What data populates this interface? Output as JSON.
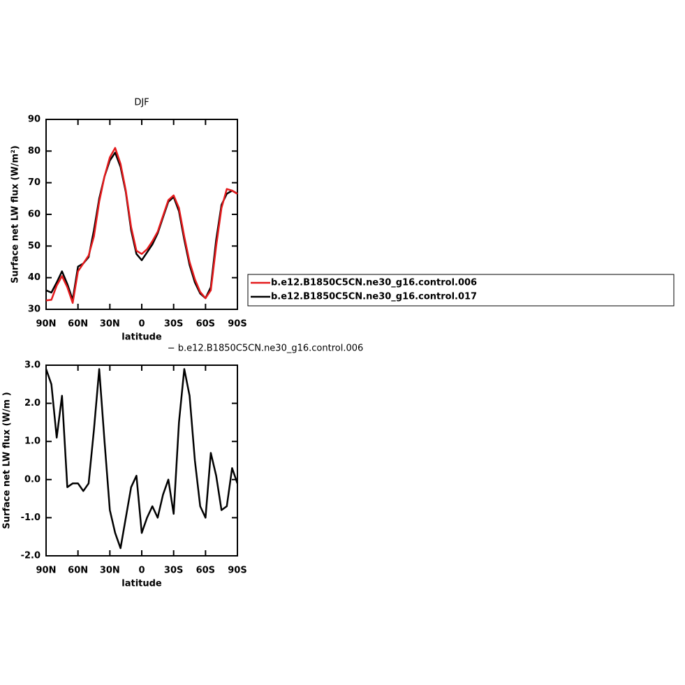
{
  "chart_data": [
    {
      "type": "line",
      "title": "DJF",
      "x_label": "latitude",
      "y_label": "Surface net LW flux (W/m²)",
      "x": [
        90,
        85,
        80,
        75,
        70,
        65,
        60,
        55,
        50,
        45,
        40,
        35,
        30,
        25,
        20,
        15,
        10,
        5,
        0,
        -5,
        -10,
        -15,
        -20,
        -25,
        -30,
        -35,
        -40,
        -45,
        -50,
        -55,
        -60,
        -65,
        -70,
        -75,
        -80,
        -85,
        -90
      ],
      "series": [
        {
          "name": "b.e12.B1850C5CN.ne30_g16.control.006",
          "color": "#e41a1c",
          "values": [
            32.8,
            33,
            37.5,
            40.5,
            37,
            32,
            42,
            44.5,
            47,
            53,
            64,
            72,
            78,
            81,
            76,
            67.5,
            56,
            48.5,
            47.5,
            49,
            51.5,
            54.5,
            59.5,
            64.5,
            66,
            62,
            53,
            45,
            39.5,
            35.5,
            33.5,
            36,
            50,
            62,
            68,
            67.5,
            66.5
          ]
        },
        {
          "name": "b.e12.B1850C5CN.ne30_g16.control.017",
          "color": "#000000",
          "values": [
            36,
            35.3,
            38.5,
            42,
            38,
            33,
            43.5,
            44.5,
            46.5,
            55,
            65,
            72,
            77,
            79.5,
            75,
            67,
            55,
            47.5,
            45.5,
            48,
            50.5,
            54,
            59,
            64,
            65.5,
            61,
            52,
            44,
            38.5,
            35,
            33.5,
            37,
            52,
            63,
            66.5,
            67.5,
            66.5
          ]
        }
      ],
      "xlim": [
        90,
        -90
      ],
      "xticks": [
        {
          "value": 90,
          "label": "90N"
        },
        {
          "value": 60,
          "label": "60N"
        },
        {
          "value": 30,
          "label": "30N"
        },
        0,
        {
          "value": -30,
          "label": "30S"
        },
        {
          "value": -60,
          "label": "60S"
        },
        {
          "value": -90,
          "label": "90S"
        }
      ],
      "ylim": [
        30,
        90
      ],
      "yticks": [
        30,
        40,
        50,
        60,
        70,
        80,
        90
      ],
      "legend": "right"
    },
    {
      "type": "line",
      "title": "− b.e12.B1850C5CN.ne30_g16.control.006",
      "x_label": "latitude",
      "y_label": "Surface net LW flux (W/m )",
      "x": [
        90,
        85,
        80,
        75,
        70,
        65,
        60,
        55,
        50,
        45,
        40,
        35,
        30,
        25,
        20,
        15,
        10,
        5,
        0,
        -5,
        -10,
        -15,
        -20,
        -25,
        -30,
        -35,
        -40,
        -45,
        -50,
        -55,
        -60,
        -65,
        -70,
        -75,
        -80,
        -85,
        -90
      ],
      "color": "#000000",
      "values": [
        2.9,
        2.5,
        1.1,
        2.2,
        -0.2,
        -0.1,
        -0.1,
        -0.3,
        -0.1,
        1.3,
        2.9,
        1.0,
        -0.8,
        -1.4,
        -1.8,
        -1.0,
        -0.2,
        0.1,
        -1.4,
        -1.0,
        -0.7,
        -1.0,
        -0.4,
        0.0,
        -0.9,
        1.5,
        2.9,
        2.2,
        0.5,
        -0.7,
        -1.0,
        0.7,
        0.1,
        -0.8,
        -0.7,
        0.3,
        -0.1
      ],
      "xlim": [
        90,
        -90
      ],
      "xticks": [
        {
          "value": 90,
          "label": "90N"
        },
        {
          "value": 60,
          "label": "60N"
        },
        {
          "value": 30,
          "label": "30N"
        },
        0,
        {
          "value": -30,
          "label": "30S"
        },
        {
          "value": -60,
          "label": "60S"
        },
        {
          "value": -90,
          "label": "90S"
        }
      ],
      "ylim": [
        -2,
        3
      ],
      "yticks": [
        {
          "value": -2,
          "label": "-2.0"
        },
        {
          "value": -1,
          "label": "-1.0"
        },
        {
          "value": 0,
          "label": "0.0"
        },
        {
          "value": 1,
          "label": "1.0"
        },
        {
          "value": 2,
          "label": "2.0"
        },
        {
          "value": 3,
          "label": "3.0"
        }
      ]
    }
  ]
}
